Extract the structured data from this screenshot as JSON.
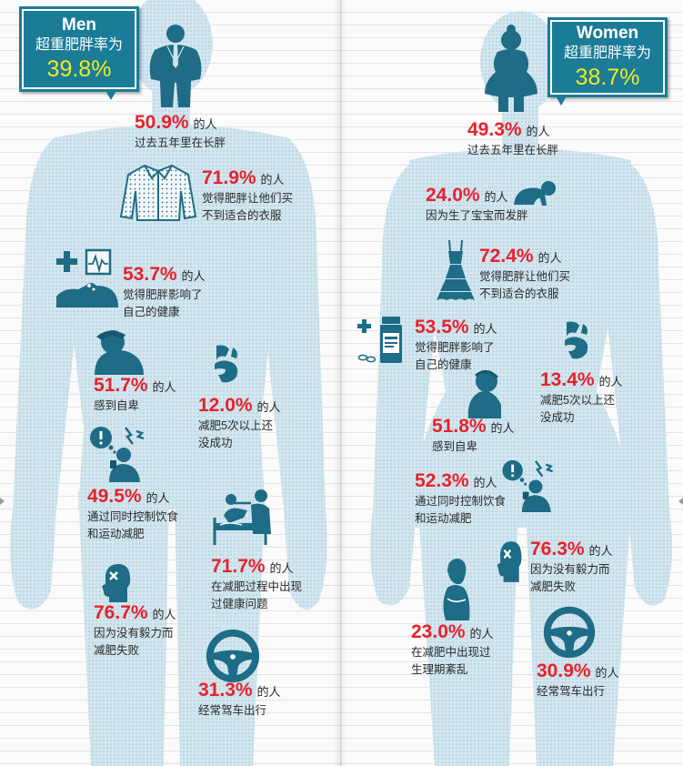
{
  "colors": {
    "label_box": "#1a7c97",
    "rate_highlight": "#f3ea1c",
    "stat_value": "#e8222b",
    "icon": "#1e6c86",
    "silhouette": "#cfe4ee"
  },
  "men": {
    "title": "Men",
    "rate_label": "超重肥胖率为",
    "rate": "39.8%",
    "header_icon": "overweight-man-icon",
    "stats": [
      {
        "value": "50.9%",
        "suffix": "的人",
        "lines": [
          "过去五年里在长胖"
        ]
      },
      {
        "value": "71.9%",
        "suffix": "的人",
        "lines": [
          "觉得肥胖让他们买",
          "不到适合的衣服"
        ],
        "icon": "shirt-icon"
      },
      {
        "value": "53.7%",
        "suffix": "的人",
        "lines": [
          "觉得肥胖影响了",
          "自己的健康"
        ],
        "icon": "health-icon"
      },
      {
        "value": "51.7%",
        "suffix": "的人",
        "lines": [
          "感到自卑"
        ],
        "icon": "sad-person-icon"
      },
      {
        "value": "12.0%",
        "suffix": "的人",
        "lines": [
          "减肥5次以上还",
          "没成功"
        ],
        "icon": "fist-icon"
      },
      {
        "value": "49.5%",
        "suffix": "的人",
        "lines": [
          "通过同时控制饮食",
          "和运动减肥"
        ],
        "icon": "stressed-person-icon"
      },
      {
        "value": "71.7%",
        "suffix": "的人",
        "lines": [
          "在减肥过程中出现",
          "过健康问题"
        ],
        "icon": "hospital-bed-icon"
      },
      {
        "value": "76.7%",
        "suffix": "的人",
        "lines": [
          "因为没有毅力而",
          "减肥失败"
        ],
        "icon": "head-x-icon"
      },
      {
        "value": "31.3%",
        "suffix": "的人",
        "lines": [
          "经常驾车出行"
        ],
        "icon": "steering-wheel-icon"
      }
    ]
  },
  "women": {
    "title": "Women",
    "rate_label": "超重肥胖率为",
    "rate": "38.7%",
    "header_icon": "overweight-woman-icon",
    "stats": [
      {
        "value": "49.3%",
        "suffix": "的人",
        "lines": [
          "过去五年里在长胖"
        ]
      },
      {
        "value": "24.0%",
        "suffix": "的人",
        "lines": [
          "因为生了宝宝而发胖"
        ],
        "icon": "crawling-baby-icon"
      },
      {
        "value": "72.4%",
        "suffix": "的人",
        "lines": [
          "觉得肥胖让他们买",
          "不到适合的衣服"
        ],
        "icon": "dress-icon"
      },
      {
        "value": "53.5%",
        "suffix": "的人",
        "lines": [
          "觉得肥胖影响了",
          "自己的健康"
        ],
        "icon": "medicine-bottle-icon"
      },
      {
        "value": "13.4%",
        "suffix": "的人",
        "lines": [
          "减肥5次以上还",
          "没成功"
        ],
        "icon": "fist-icon"
      },
      {
        "value": "51.8%",
        "suffix": "的人",
        "lines": [
          "感到自卑"
        ],
        "icon": "sad-person-icon"
      },
      {
        "value": "52.3%",
        "suffix": "的人",
        "lines": [
          "通过同时控制饮食",
          "和运动减肥"
        ],
        "icon": "stressed-person-icon"
      },
      {
        "value": "76.3%",
        "suffix": "的人",
        "lines": [
          "因为没有毅力而",
          "减肥失败"
        ],
        "icon": "head-x-icon"
      },
      {
        "value": "23.0%",
        "suffix": "的人",
        "lines": [
          "在减肥中出现过",
          "生理期紊乱"
        ],
        "icon": "woman-abdominal-pain-icon"
      },
      {
        "value": "30.9%",
        "suffix": "的人",
        "lines": [
          "经常驾车出行"
        ],
        "icon": "steering-wheel-icon"
      }
    ]
  }
}
